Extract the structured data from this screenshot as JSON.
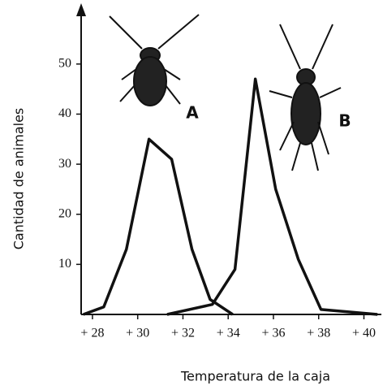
{
  "chart_data": {
    "type": "line",
    "x_label": "Temperatura de la caja",
    "y_label": "Cantidad de animales",
    "xlim": [
      27.5,
      40.7
    ],
    "ylim": [
      0,
      61
    ],
    "xticks": [
      {
        "value": 28,
        "label": "+ 28"
      },
      {
        "value": 30,
        "label": "+ 30"
      },
      {
        "value": 32,
        "label": "+ 32"
      },
      {
        "value": 34,
        "label": "+ 34"
      },
      {
        "value": 36,
        "label": "+ 36"
      },
      {
        "value": 38,
        "label": "+ 38"
      },
      {
        "value": 40,
        "label": "+ 40"
      }
    ],
    "yticks": [
      10,
      20,
      30,
      40,
      50
    ],
    "series": [
      {
        "name": "A",
        "color": "#111111",
        "x": [
          27.6,
          28.5,
          29.5,
          30.5,
          31.5,
          32.4,
          33.2,
          34.2
        ],
        "values": [
          0,
          1.5,
          13,
          35,
          31,
          13,
          3,
          0
        ]
      },
      {
        "name": "B",
        "color": "#111111",
        "x": [
          31.3,
          33.3,
          34.3,
          35.2,
          36.1,
          37.1,
          38.1,
          40.6
        ],
        "values": [
          0,
          2,
          9,
          47,
          25,
          11,
          1,
          0
        ]
      }
    ]
  }
}
